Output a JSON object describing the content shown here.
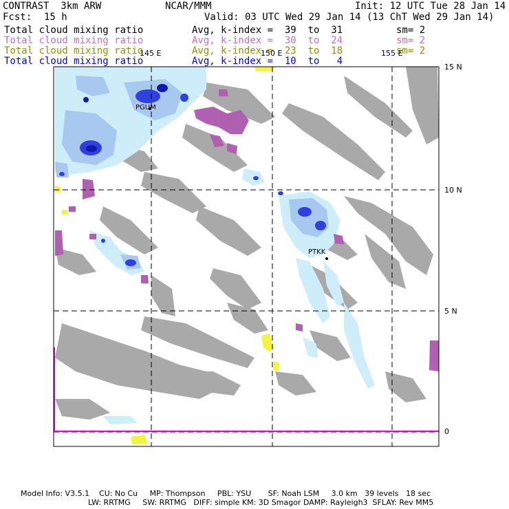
{
  "header": {
    "model": "CONTRAST  3km ARW",
    "center": "NCAR/MMM",
    "init": "Init: 12 UTC Tue 28 Jan 14",
    "fcst_label": "Fcst:",
    "fcst_value": "15 h",
    "valid": "Valid: 03 UTC Wed 29 Jan 14 (13 ChT Wed 29 Jan 14)"
  },
  "fields": [
    {
      "name": "Total cloud mixing ratio",
      "avg": "Avg, k-index =  39  to  31",
      "sm": "sm= 2",
      "color": "#000000"
    },
    {
      "name": "Total cloud mixing ratio",
      "avg": "Avg, k-index =  30  to  24",
      "sm": "sm= 2",
      "color": "#c070c0"
    },
    {
      "name": "Total cloud mixing ratio",
      "avg": "Avg, k-index =  23  to  18",
      "sm": "sm= 2",
      "color": "#909000"
    },
    {
      "name": "Total cloud mixing ratio",
      "avg": "Avg, k-index =  10  to   4",
      "sm": "",
      "color": "#0000ff"
    }
  ],
  "map": {
    "lon_labels": [
      "145 E",
      "150 E",
      "155 E"
    ],
    "lat_labels": [
      "15 N",
      "10 N",
      "5 N",
      "0"
    ],
    "stations": [
      "PGUM",
      "PTKK"
    ],
    "colors": {
      "gray": "#a9a9a9",
      "cyan": "#cdeef8",
      "lightblue": "#a8c8f0",
      "blue": "#3040e0",
      "darkblue": "#1018b0",
      "purple": "#b060b0",
      "yellow": "#f4f440",
      "magenta": "#e000e0"
    }
  },
  "footer": {
    "line1": "Model Info: V3.5.1    CU: No Cu     MP: Thompson     PBL: YSU       SF: Noah LSM     3.0 km   39 levels   18 sec",
    "line2": "LW: RRTMG     SW: RRTMG   DIFF: simple KM: 3D Smagor DAMP: Rayleigh3  SFLAY: Rev MM5"
  }
}
